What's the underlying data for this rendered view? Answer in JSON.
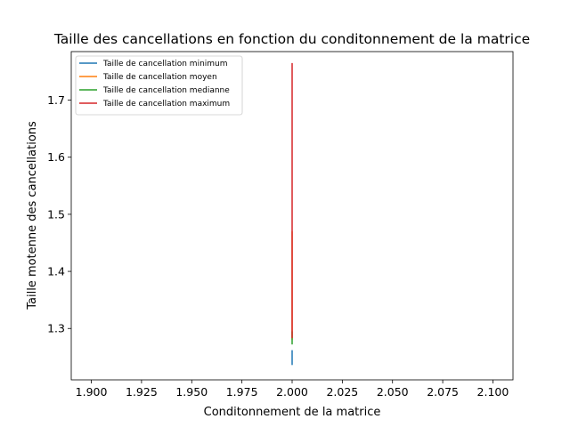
{
  "chart_data": {
    "type": "line",
    "title": "Taille des cancellations en fonction du conditonnement de la matrice",
    "xlabel": "Conditonnement de la matrice",
    "ylabel": "Taille motenne des cancellations",
    "xlim": [
      1.89,
      2.11
    ],
    "ylim": [
      1.21,
      1.785
    ],
    "x_ticks": [
      "1.900",
      "1.925",
      "1.950",
      "1.975",
      "2.000",
      "2.025",
      "2.050",
      "2.075",
      "2.100"
    ],
    "y_ticks": [
      "1.3",
      "1.4",
      "1.5",
      "1.6",
      "1.7"
    ],
    "grid": false,
    "legend_position": "top-left",
    "series": [
      {
        "name": "Taille de cancellation minimum",
        "color": "#1f77b4",
        "x": [
          2.0,
          2.0
        ],
        "y": [
          1.236,
          1.262
        ]
      },
      {
        "name": "Taille de cancellation moyen",
        "color": "#ff7f0e",
        "x": [
          2.0,
          2.0
        ],
        "y": [
          1.28,
          1.47
        ]
      },
      {
        "name": "Taille de cancellation medianne",
        "color": "#2ca02c",
        "x": [
          2.0,
          2.0
        ],
        "y": [
          1.272,
          1.295
        ]
      },
      {
        "name": "Taille de cancellation maximum",
        "color": "#d62728",
        "x": [
          2.0,
          2.0
        ],
        "y": [
          1.283,
          1.765
        ]
      }
    ]
  }
}
